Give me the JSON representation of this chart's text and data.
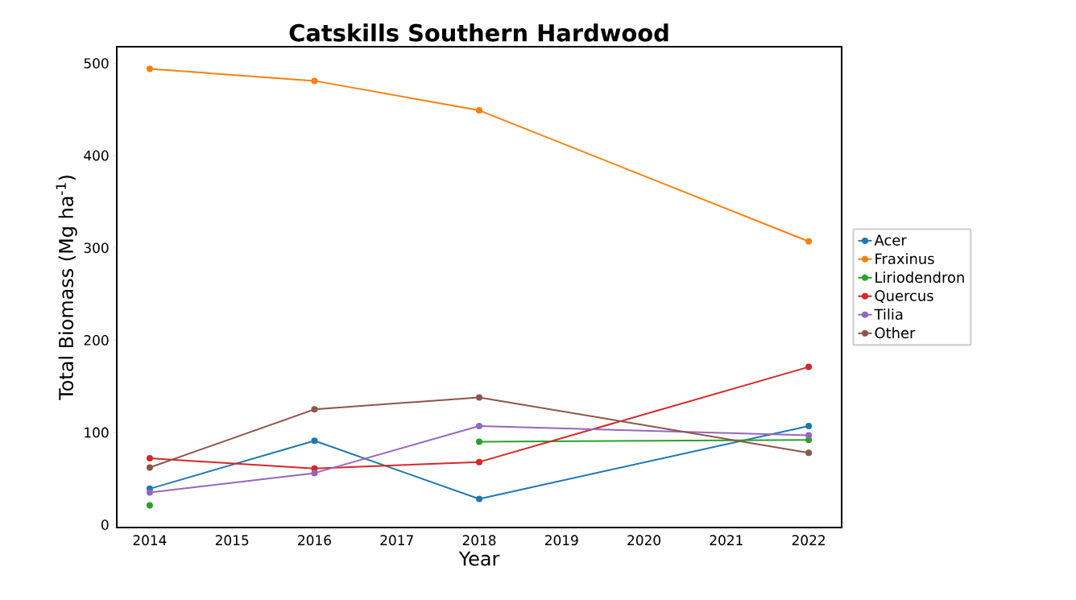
{
  "chart_data": {
    "type": "line",
    "title": "Catskills Southern Hardwood",
    "xlabel": "Year",
    "ylabel": "Total Biomass (Mg ha$^{-1}$)",
    "x": [
      2014,
      2016,
      2018,
      2022
    ],
    "series": [
      {
        "name": "Acer",
        "color": "#1f77b4",
        "values": [
          39,
          91,
          28,
          107
        ]
      },
      {
        "name": "Fraxinus",
        "color": "#ff7f0e",
        "values": [
          494,
          481,
          449,
          307
        ]
      },
      {
        "name": "Liriodendron",
        "color": "#2ca02c",
        "values": [
          21,
          null,
          90,
          92
        ]
      },
      {
        "name": "Quercus",
        "color": "#d62728",
        "values": [
          72,
          61,
          68,
          171
        ]
      },
      {
        "name": "Tilia",
        "color": "#9467bd",
        "values": [
          35,
          56,
          107,
          97
        ]
      },
      {
        "name": "Other",
        "color": "#8c564b",
        "values": [
          62,
          125,
          138,
          78
        ]
      }
    ],
    "xlim": [
      2013.6,
      2022.4
    ],
    "ylim": [
      -3,
      518
    ],
    "xticks": [
      2014,
      2015,
      2016,
      2017,
      2018,
      2019,
      2020,
      2021,
      2022
    ],
    "yticks": [
      0,
      100,
      200,
      300,
      400,
      500
    ],
    "legend": "right",
    "marker": "circle",
    "line_style": "solid"
  }
}
